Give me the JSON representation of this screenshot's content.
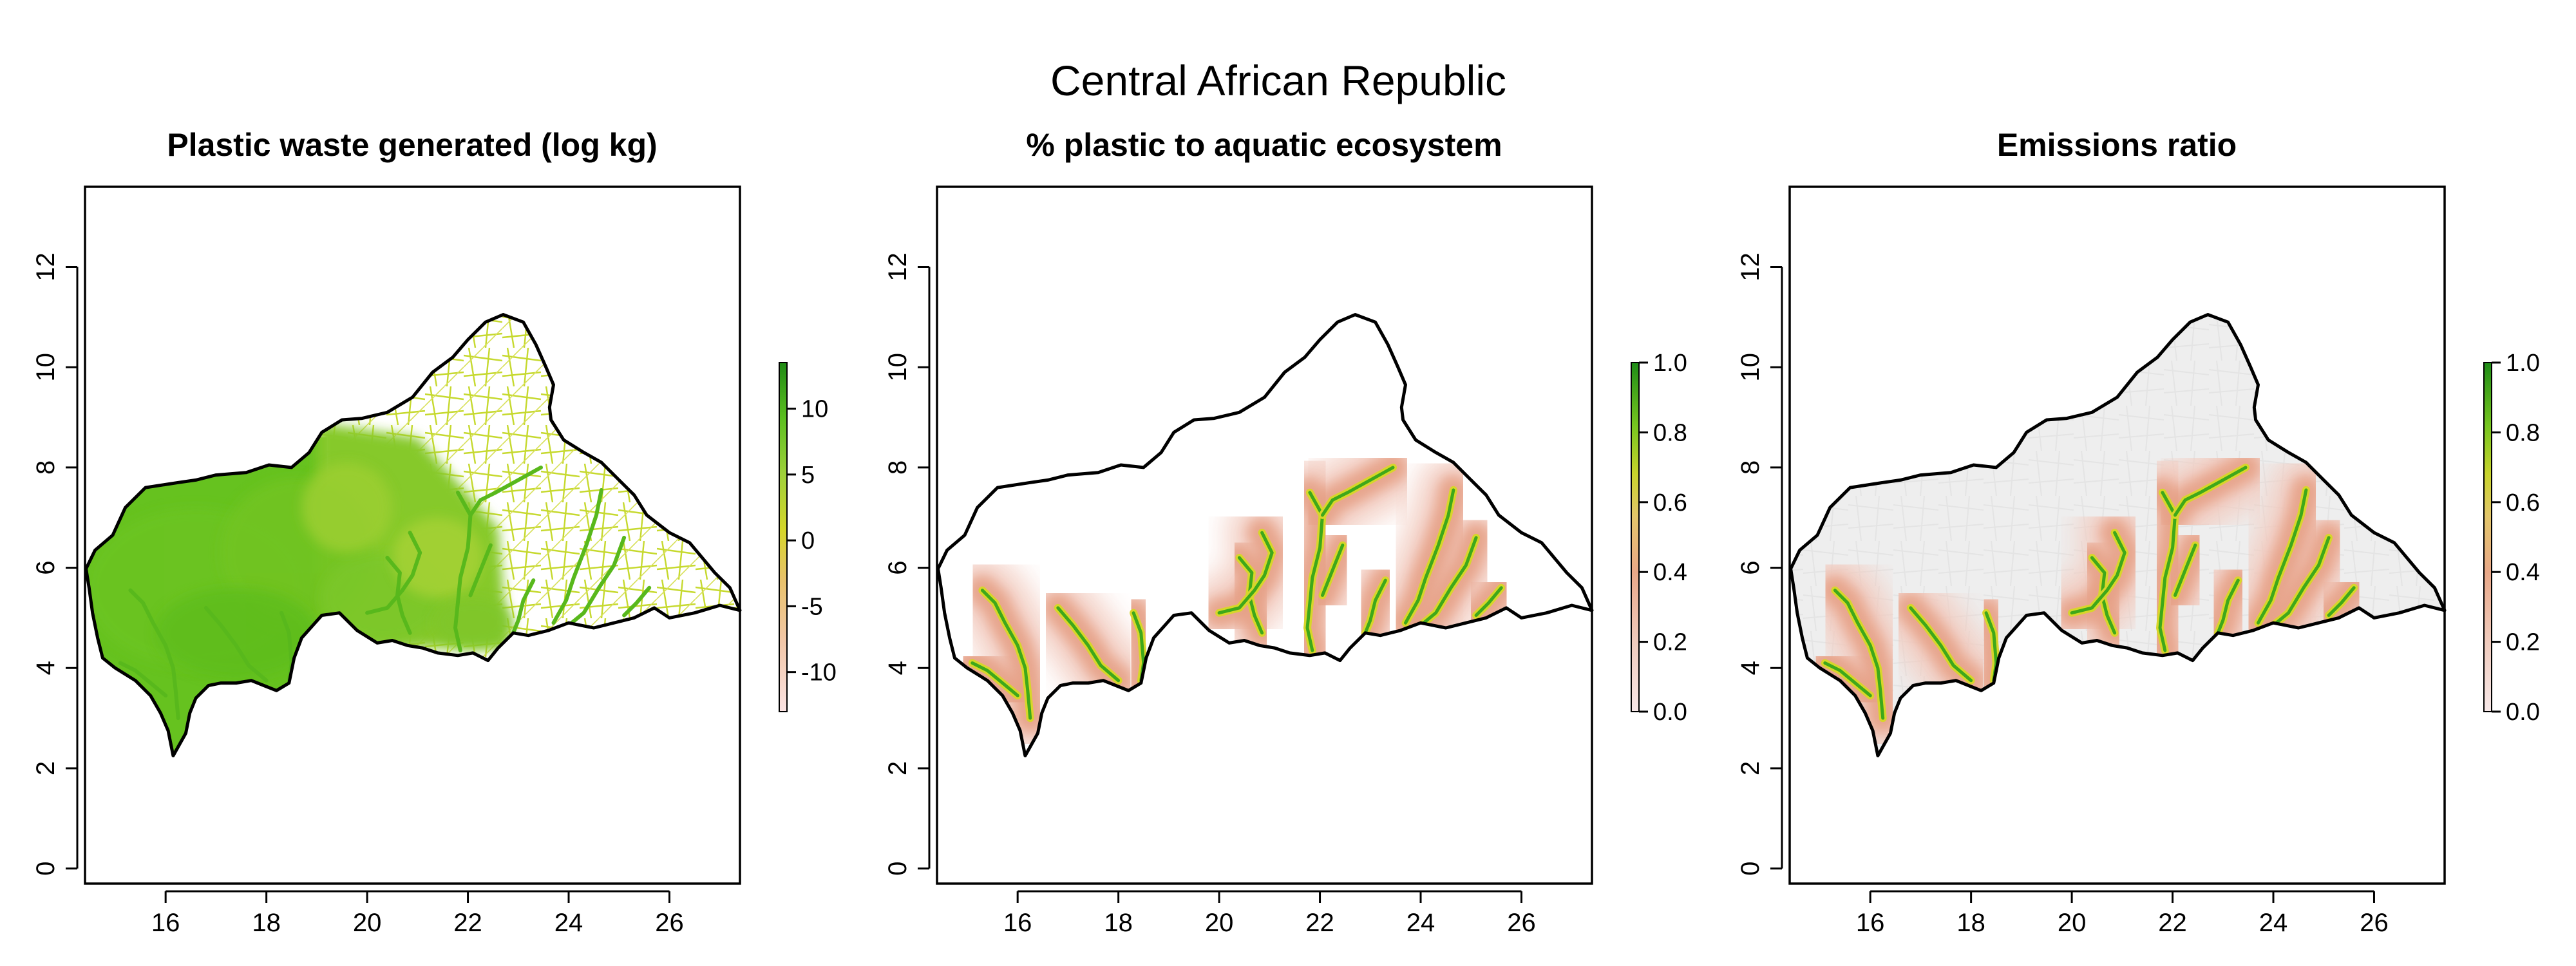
{
  "figure": {
    "title": "Central African Republic"
  },
  "panels": [
    {
      "title": "Plastic waste generated (log kg)",
      "colorbar": {
        "ticks": [
          "10",
          "5",
          "0",
          "-5",
          "-10"
        ],
        "min": -13,
        "max": 13.5
      }
    },
    {
      "title": "% plastic to aquatic ecosystem",
      "colorbar": {
        "ticks": [
          "1.0",
          "0.8",
          "0.6",
          "0.4",
          "0.2",
          "0.0"
        ],
        "min": 0,
        "max": 1
      }
    },
    {
      "title": "Emissions ratio",
      "colorbar": {
        "ticks": [
          "1.0",
          "0.8",
          "0.6",
          "0.4",
          "0.2",
          "0.0"
        ],
        "min": 0,
        "max": 1
      }
    }
  ],
  "axes": {
    "x_ticks": [
      "16",
      "18",
      "20",
      "22",
      "24",
      "26"
    ],
    "x_values": [
      16,
      18,
      20,
      22,
      24,
      26
    ],
    "y_ticks": [
      "0",
      "2",
      "4",
      "6",
      "8",
      "10",
      "12"
    ],
    "y_values": [
      0,
      2,
      4,
      6,
      8,
      10,
      12
    ],
    "xlim": [
      14.4,
      27.4
    ],
    "ylim": [
      -0.3,
      13.6
    ]
  },
  "colors": {
    "waste_scale": [
      "#fbe3e3",
      "#f2c7a8",
      "#e8c26a",
      "#d6d62a",
      "#9fd13a",
      "#5cbf20",
      "#1f8a14"
    ],
    "ratio_scale": [
      "#f7e8e8",
      "#f0cbbd",
      "#e9a888",
      "#e3c66a",
      "#c9d42c",
      "#76c51f",
      "#1e8c17"
    ],
    "no_data": "#eeeeee",
    "border": "#000000"
  }
}
